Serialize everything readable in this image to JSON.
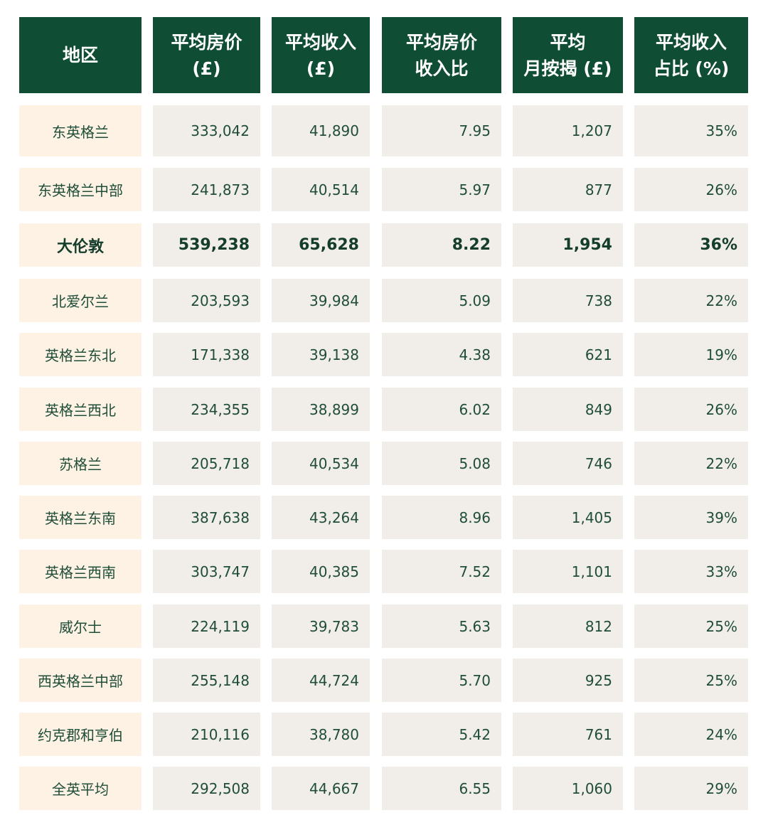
{
  "chart_data": {
    "type": "table",
    "columns": [
      "地区",
      "平均房价\n(£)",
      "平均收入\n(£)",
      "平均房价\n收入比",
      "平均\n月按揭 (£)",
      "平均收入\n占比 (%)"
    ],
    "rows": [
      [
        "东英格兰",
        "333,042",
        "41,890",
        "7.95",
        "1,207",
        "35%"
      ],
      [
        "东英格兰中部",
        "241,873",
        "40,514",
        "5.97",
        "877",
        "26%"
      ],
      [
        "大伦敦",
        "539,238",
        "65,628",
        "8.22",
        "1,954",
        "36%"
      ],
      [
        "北爱尔兰",
        "203,593",
        "39,984",
        "5.09",
        "738",
        "22%"
      ],
      [
        "英格兰东北",
        "171,338",
        "39,138",
        "4.38",
        "621",
        "19%"
      ],
      [
        "英格兰西北",
        "234,355",
        "38,899",
        "6.02",
        "849",
        "26%"
      ],
      [
        "苏格兰",
        "205,718",
        "40,534",
        "5.08",
        "746",
        "22%"
      ],
      [
        "英格兰东南",
        "387,638",
        "43,264",
        "8.96",
        "1,405",
        "39%"
      ],
      [
        "英格兰西南",
        "303,747",
        "40,385",
        "7.52",
        "1,101",
        "33%"
      ],
      [
        "威尔士",
        "224,119",
        "39,783",
        "5.63",
        "812",
        "25%"
      ],
      [
        "西英格兰中部",
        "255,148",
        "44,724",
        "5.70",
        "925",
        "25%"
      ],
      [
        "约克郡和亨伯",
        "210,116",
        "38,780",
        "5.42",
        "761",
        "24%"
      ],
      [
        "全英平均",
        "292,508",
        "44,667",
        "6.55",
        "1,060",
        "29%"
      ]
    ],
    "highlighted_row": 2
  },
  "colors": {
    "header_bg": "#0f4d34",
    "header_text": "#ffffff",
    "region_bg": "#fdf2e4",
    "cell_bg": "#f1eee9",
    "text": "#1f4d38"
  }
}
